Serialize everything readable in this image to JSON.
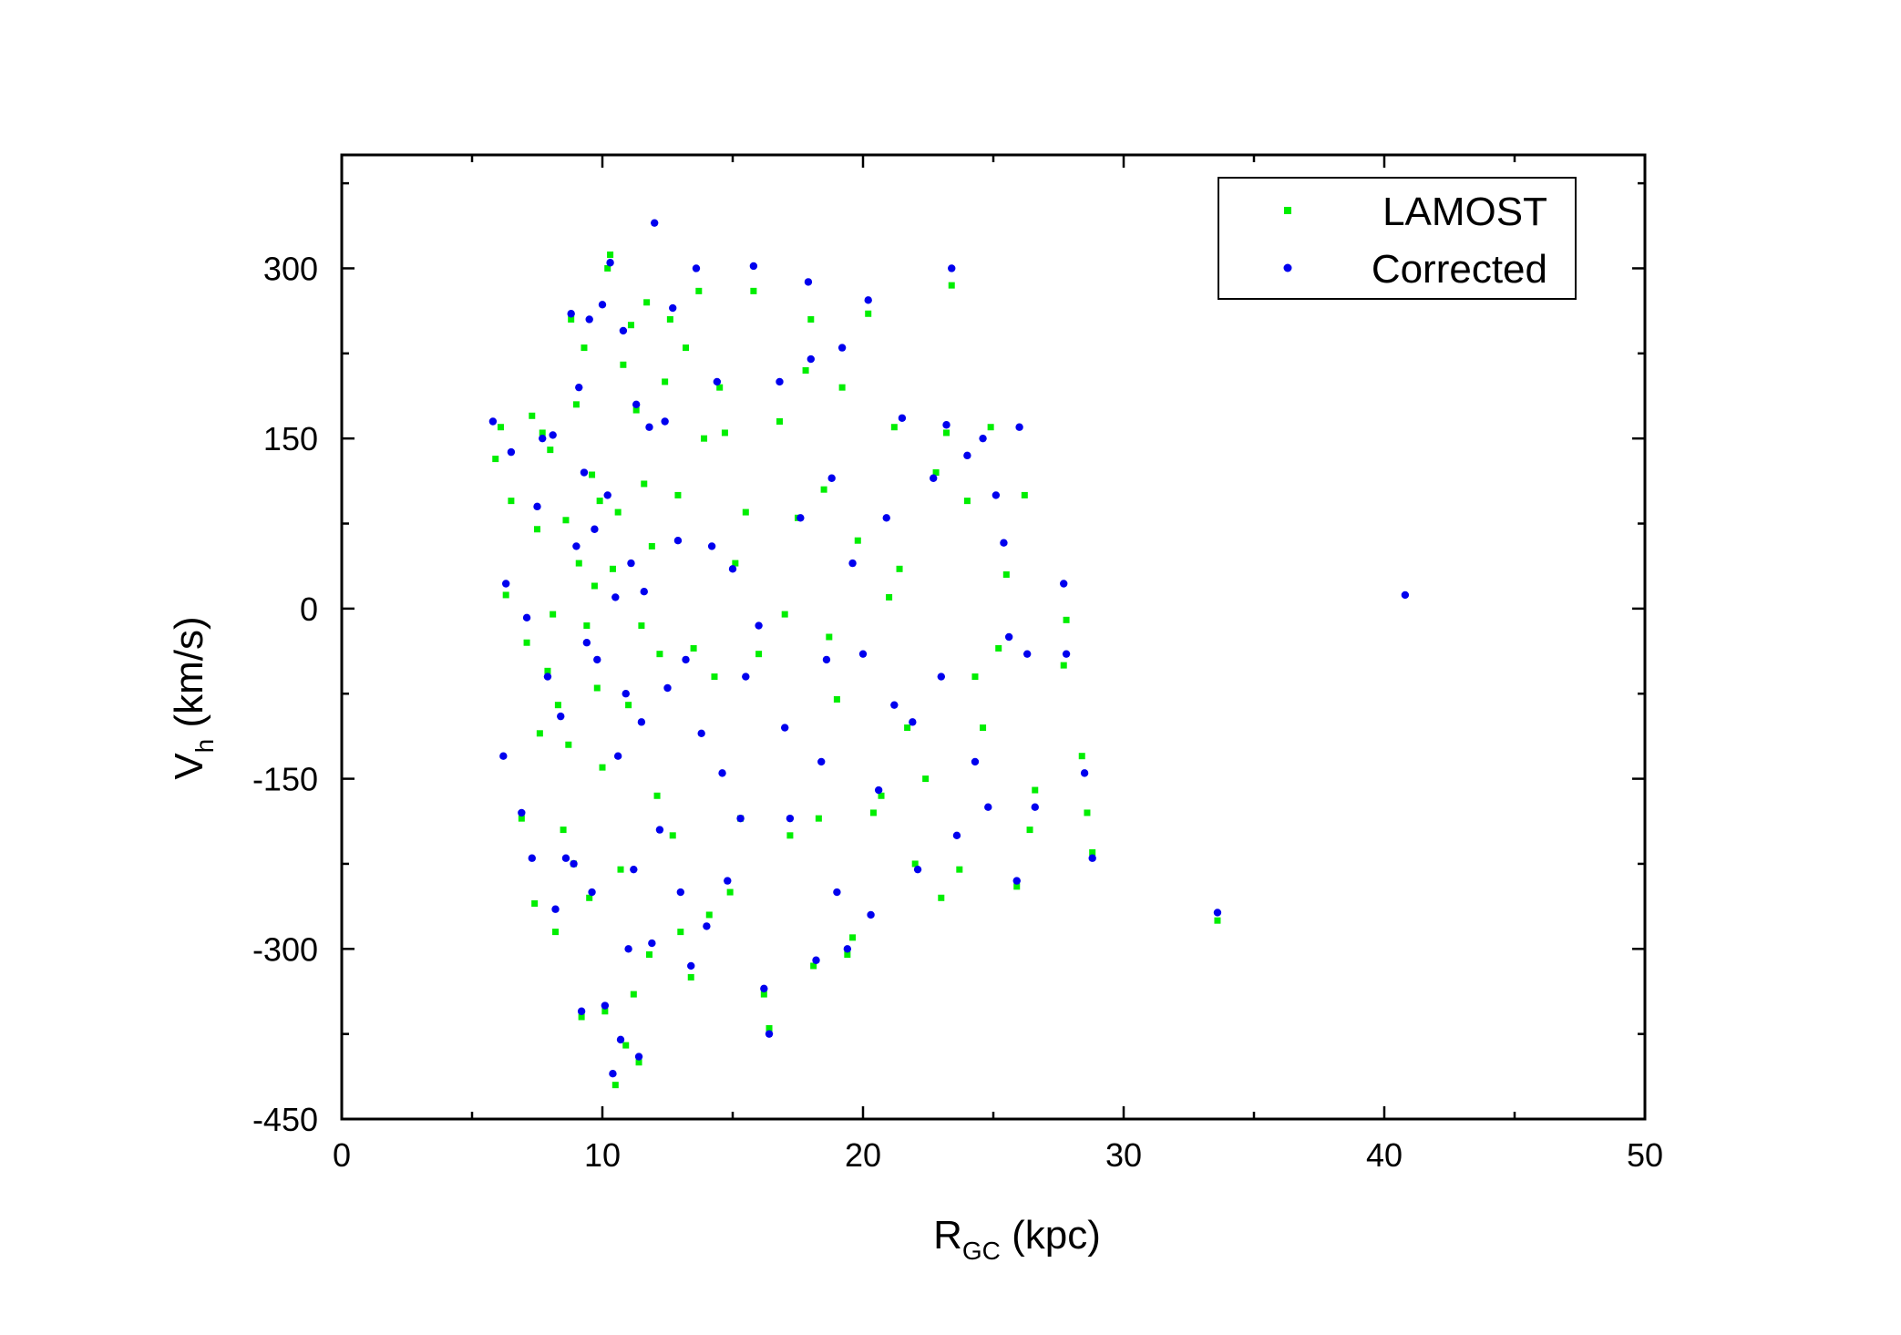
{
  "chart_data": {
    "type": "scatter",
    "xlabel": "R",
    "xlabel_sub": "GC",
    "xlabel_unit": " (kpc)",
    "ylabel": "V",
    "ylabel_sub": "h",
    "ylabel_unit": " (km/s)",
    "xlim": [
      0,
      50
    ],
    "ylim": [
      -450,
      400
    ],
    "x_ticks": [
      0,
      10,
      20,
      30,
      40,
      50
    ],
    "x_tick_labels": [
      "0",
      "10",
      "20",
      "30",
      "40",
      "50"
    ],
    "y_ticks": [
      -450,
      -300,
      -150,
      0,
      150,
      300
    ],
    "y_tick_labels": [
      "-450",
      "-300",
      "-150",
      "0",
      "150",
      "300"
    ],
    "grid": false,
    "legend_position": "top-right",
    "series": [
      {
        "name": "LAMOST",
        "color": "#00ee00",
        "marker": "square",
        "points": [
          [
            5.9,
            132
          ],
          [
            6.1,
            160
          ],
          [
            6.3,
            12
          ],
          [
            6.5,
            95
          ],
          [
            6.9,
            -185
          ],
          [
            7.1,
            -30
          ],
          [
            7.3,
            170
          ],
          [
            7.4,
            -260
          ],
          [
            7.5,
            70
          ],
          [
            7.6,
            -110
          ],
          [
            7.7,
            155
          ],
          [
            7.9,
            -55
          ],
          [
            8.0,
            140
          ],
          [
            8.1,
            -5
          ],
          [
            8.2,
            -285
          ],
          [
            8.3,
            -85
          ],
          [
            8.5,
            -195
          ],
          [
            8.6,
            78
          ],
          [
            8.7,
            -120
          ],
          [
            8.8,
            255
          ],
          [
            8.9,
            -225
          ],
          [
            9.0,
            180
          ],
          [
            9.1,
            40
          ],
          [
            9.2,
            -360
          ],
          [
            9.3,
            230
          ],
          [
            9.4,
            -15
          ],
          [
            9.5,
            -255
          ],
          [
            9.6,
            118
          ],
          [
            9.7,
            20
          ],
          [
            9.8,
            -70
          ],
          [
            9.9,
            95
          ],
          [
            10.0,
            -140
          ],
          [
            10.1,
            -355
          ],
          [
            10.2,
            300
          ],
          [
            10.3,
            312
          ],
          [
            10.4,
            35
          ],
          [
            10.5,
            -420
          ],
          [
            10.6,
            85
          ],
          [
            10.7,
            -230
          ],
          [
            10.8,
            215
          ],
          [
            10.9,
            -385
          ],
          [
            11.0,
            -85
          ],
          [
            11.1,
            250
          ],
          [
            11.2,
            -340
          ],
          [
            11.3,
            175
          ],
          [
            11.4,
            -400
          ],
          [
            11.5,
            -15
          ],
          [
            11.6,
            110
          ],
          [
            11.7,
            270
          ],
          [
            11.8,
            -305
          ],
          [
            11.9,
            55
          ],
          [
            12.1,
            -165
          ],
          [
            12.2,
            -40
          ],
          [
            12.4,
            200
          ],
          [
            12.6,
            255
          ],
          [
            12.7,
            -200
          ],
          [
            12.9,
            100
          ],
          [
            13.0,
            -285
          ],
          [
            13.2,
            230
          ],
          [
            13.4,
            -325
          ],
          [
            13.5,
            -35
          ],
          [
            13.7,
            280
          ],
          [
            13.9,
            150
          ],
          [
            14.1,
            -270
          ],
          [
            14.3,
            -60
          ],
          [
            14.5,
            195
          ],
          [
            14.7,
            155
          ],
          [
            14.9,
            -250
          ],
          [
            15.1,
            40
          ],
          [
            15.3,
            -185
          ],
          [
            15.5,
            85
          ],
          [
            15.8,
            280
          ],
          [
            16.0,
            -40
          ],
          [
            16.2,
            -340
          ],
          [
            16.4,
            -370
          ],
          [
            16.8,
            165
          ],
          [
            17.0,
            -5
          ],
          [
            17.2,
            -200
          ],
          [
            17.5,
            80
          ],
          [
            17.8,
            210
          ],
          [
            18.0,
            255
          ],
          [
            18.1,
            -315
          ],
          [
            18.3,
            -185
          ],
          [
            18.5,
            105
          ],
          [
            18.7,
            -25
          ],
          [
            19.0,
            -80
          ],
          [
            19.2,
            195
          ],
          [
            19.4,
            -305
          ],
          [
            19.6,
            -290
          ],
          [
            19.8,
            60
          ],
          [
            20.2,
            260
          ],
          [
            20.4,
            -180
          ],
          [
            20.7,
            -165
          ],
          [
            21.0,
            10
          ],
          [
            21.2,
            160
          ],
          [
            21.4,
            35
          ],
          [
            21.7,
            -105
          ],
          [
            22.0,
            -225
          ],
          [
            22.4,
            -150
          ],
          [
            22.8,
            120
          ],
          [
            23.0,
            -255
          ],
          [
            23.2,
            155
          ],
          [
            23.4,
            285
          ],
          [
            23.7,
            -230
          ],
          [
            24.0,
            95
          ],
          [
            24.3,
            -60
          ],
          [
            24.6,
            -105
          ],
          [
            24.9,
            160
          ],
          [
            25.2,
            -35
          ],
          [
            25.5,
            30
          ],
          [
            25.9,
            -245
          ],
          [
            26.2,
            100
          ],
          [
            26.4,
            -195
          ],
          [
            26.6,
            -160
          ],
          [
            27.8,
            -10
          ],
          [
            27.7,
            -50
          ],
          [
            28.4,
            -130
          ],
          [
            28.6,
            -180
          ],
          [
            28.8,
            -215
          ],
          [
            33.6,
            -275
          ]
        ]
      },
      {
        "name": "Corrected",
        "color": "#0000ee",
        "marker": "circle",
        "points": [
          [
            5.8,
            165
          ],
          [
            6.2,
            -130
          ],
          [
            6.3,
            22
          ],
          [
            6.5,
            138
          ],
          [
            6.9,
            -180
          ],
          [
            7.1,
            -8
          ],
          [
            7.3,
            -220
          ],
          [
            7.5,
            90
          ],
          [
            7.7,
            150
          ],
          [
            7.9,
            -60
          ],
          [
            8.1,
            153
          ],
          [
            8.2,
            -265
          ],
          [
            8.4,
            -95
          ],
          [
            8.6,
            -220
          ],
          [
            8.8,
            260
          ],
          [
            8.9,
            -225
          ],
          [
            9.0,
            55
          ],
          [
            9.1,
            195
          ],
          [
            9.2,
            -355
          ],
          [
            9.3,
            120
          ],
          [
            9.4,
            -30
          ],
          [
            9.5,
            255
          ],
          [
            9.6,
            -250
          ],
          [
            9.7,
            70
          ],
          [
            9.8,
            -45
          ],
          [
            10.0,
            268
          ],
          [
            10.1,
            -350
          ],
          [
            10.2,
            100
          ],
          [
            10.3,
            305
          ],
          [
            10.4,
            -410
          ],
          [
            10.5,
            10
          ],
          [
            10.6,
            -130
          ],
          [
            10.7,
            -380
          ],
          [
            10.8,
            245
          ],
          [
            10.9,
            -75
          ],
          [
            11.0,
            -300
          ],
          [
            11.1,
            40
          ],
          [
            11.2,
            -230
          ],
          [
            11.3,
            180
          ],
          [
            11.4,
            -395
          ],
          [
            11.5,
            -100
          ],
          [
            11.6,
            15
          ],
          [
            11.8,
            160
          ],
          [
            11.9,
            -295
          ],
          [
            12.0,
            340
          ],
          [
            12.2,
            -195
          ],
          [
            12.4,
            165
          ],
          [
            12.5,
            -70
          ],
          [
            12.7,
            265
          ],
          [
            12.9,
            60
          ],
          [
            13.0,
            -250
          ],
          [
            13.2,
            -45
          ],
          [
            13.4,
            -315
          ],
          [
            13.6,
            300
          ],
          [
            13.8,
            -110
          ],
          [
            14.0,
            -280
          ],
          [
            14.2,
            55
          ],
          [
            14.4,
            200
          ],
          [
            14.6,
            -145
          ],
          [
            14.8,
            -240
          ],
          [
            15.0,
            35
          ],
          [
            15.3,
            -185
          ],
          [
            15.5,
            -60
          ],
          [
            15.8,
            302
          ],
          [
            16.0,
            -15
          ],
          [
            16.2,
            -335
          ],
          [
            16.4,
            -375
          ],
          [
            16.8,
            200
          ],
          [
            17.0,
            -105
          ],
          [
            17.2,
            -185
          ],
          [
            17.6,
            80
          ],
          [
            17.9,
            288
          ],
          [
            18.0,
            220
          ],
          [
            18.2,
            -310
          ],
          [
            18.4,
            -135
          ],
          [
            18.6,
            -45
          ],
          [
            18.8,
            115
          ],
          [
            19.0,
            -250
          ],
          [
            19.2,
            230
          ],
          [
            19.4,
            -300
          ],
          [
            19.6,
            40
          ],
          [
            20.0,
            -40
          ],
          [
            20.2,
            272
          ],
          [
            20.3,
            -270
          ],
          [
            20.6,
            -160
          ],
          [
            20.9,
            80
          ],
          [
            21.2,
            -85
          ],
          [
            21.5,
            168
          ],
          [
            21.9,
            -100
          ],
          [
            22.1,
            -230
          ],
          [
            22.7,
            115
          ],
          [
            23.0,
            -60
          ],
          [
            23.2,
            162
          ],
          [
            23.4,
            300
          ],
          [
            23.6,
            -200
          ],
          [
            24.0,
            135
          ],
          [
            24.3,
            -135
          ],
          [
            24.6,
            150
          ],
          [
            24.8,
            -175
          ],
          [
            25.1,
            100
          ],
          [
            25.4,
            58
          ],
          [
            25.6,
            -25
          ],
          [
            25.9,
            -240
          ],
          [
            26.0,
            160
          ],
          [
            26.3,
            -40
          ],
          [
            26.6,
            -175
          ],
          [
            27.7,
            22
          ],
          [
            27.8,
            -40
          ],
          [
            28.5,
            -145
          ],
          [
            28.8,
            -220
          ],
          [
            33.6,
            -268
          ],
          [
            40.8,
            12
          ]
        ]
      }
    ]
  }
}
